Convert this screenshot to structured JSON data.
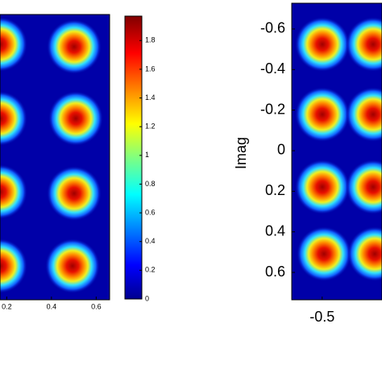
{
  "chart_data": [
    {
      "type": "heatmap",
      "xlim": [
        0.17,
        0.66
      ],
      "xticks": [
        0.2,
        0.4,
        0.6
      ],
      "clim": [
        0,
        1.97
      ],
      "cticks": [
        0,
        0.2,
        0.4,
        0.6,
        0.8,
        1,
        1.2,
        1.4,
        1.6,
        1.8
      ]
    },
    {
      "type": "heatmap",
      "ylabel": "Imag",
      "xlim": [
        -0.65,
        -0.205
      ],
      "xticks": [
        -0.5
      ],
      "ylim": [
        -0.727,
        0.735
      ],
      "yticks": [
        -0.6,
        -0.4,
        -0.2,
        0,
        0.2,
        0.4,
        0.6
      ]
    }
  ]
}
